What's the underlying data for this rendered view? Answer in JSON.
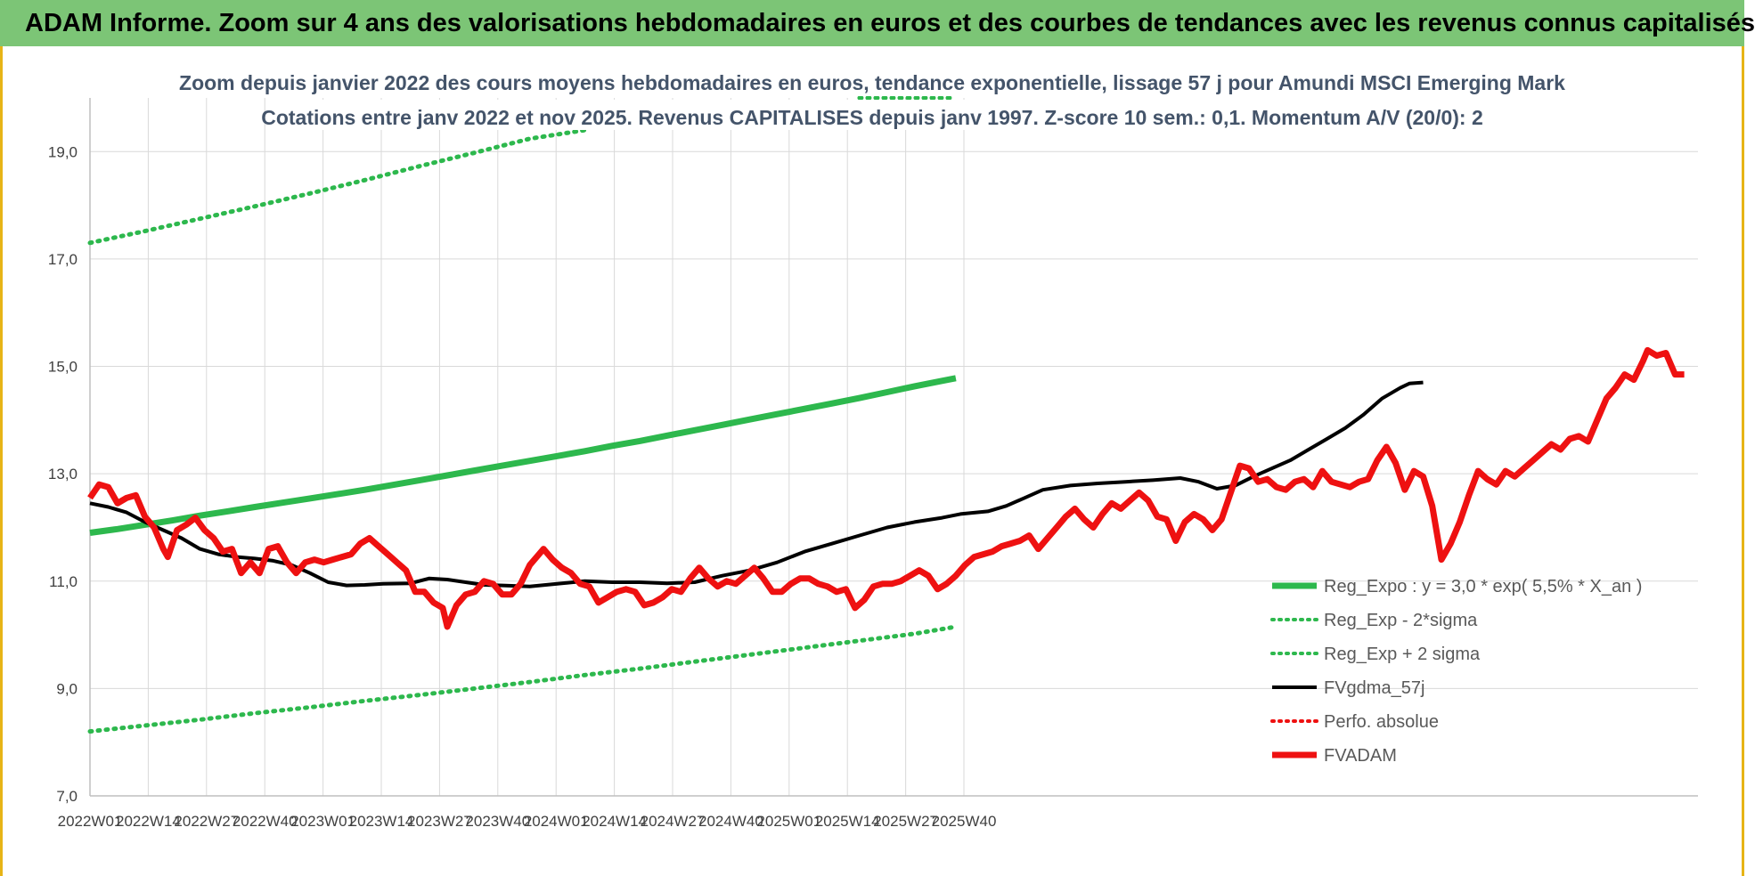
{
  "banner": {
    "text": "ADAM Informe. Zoom sur 4 ans des valorisations hebdomadaires en euros et des courbes de tendances avec les revenus connus capitalisés"
  },
  "colors": {
    "banner_bg": "#7cc576",
    "trend_green": "#2db84d",
    "fv_black": "#000000",
    "adam_red": "#ee1111",
    "frame_accent": "#e7b416"
  },
  "chart_data": {
    "type": "line",
    "title": "Zoom depuis janvier 2022 des cours moyens hebdomadaires en euros, tendance exponentielle, lissage 57 j pour Amundi MSCI Emerging Mark",
    "subtitle": "Cotations entre janv 2022 et nov 2025. Revenus CAPITALISES depuis janv 1997. Z-score 10 sem.: 0,1. Momentum A/V (20/0): 2",
    "xlabel": "",
    "ylabel": "",
    "x_ticks": [
      "2022W01",
      "2022W14",
      "2022W27",
      "2022W40",
      "2023W01",
      "2023W14",
      "2023W27",
      "2023W40",
      "2024W01",
      "2024W14",
      "2024W27",
      "2024W40",
      "2025W01",
      "2025W14",
      "2025W27",
      "2025W40"
    ],
    "y_ticks": [
      "7,0",
      "9,0",
      "11,0",
      "13,0",
      "15,0",
      "17,0",
      "19,0"
    ],
    "ylim": [
      7,
      20
    ],
    "grid": true,
    "legend_position": "bottom-right",
    "series": [
      {
        "name": "Reg_Expo : y = 3,0 * exp( 5,5% * X_an )",
        "style": "solid-thick",
        "color": "#2db84d",
        "values": [
          [
            0,
            11.9
          ],
          [
            6,
            11.97
          ],
          [
            12,
            12.05
          ],
          [
            18,
            12.13
          ],
          [
            24,
            12.22
          ],
          [
            30,
            12.3
          ],
          [
            36,
            12.38
          ],
          [
            42,
            12.46
          ],
          [
            48,
            12.54
          ],
          [
            54,
            12.62
          ],
          [
            60,
            12.7
          ],
          [
            66,
            12.79
          ],
          [
            72,
            12.88
          ],
          [
            78,
            12.97
          ],
          [
            84,
            13.06
          ],
          [
            90,
            13.15
          ],
          [
            96,
            13.24
          ],
          [
            102,
            13.33
          ],
          [
            108,
            13.42
          ],
          [
            114,
            13.52
          ],
          [
            120,
            13.61
          ],
          [
            126,
            13.71
          ],
          [
            132,
            13.81
          ],
          [
            138,
            13.91
          ],
          [
            144,
            14.01
          ],
          [
            150,
            14.11
          ],
          [
            156,
            14.21
          ],
          [
            162,
            14.31
          ],
          [
            168,
            14.41
          ],
          [
            174,
            14.52
          ],
          [
            180,
            14.63
          ],
          [
            186,
            14.73
          ],
          [
            189,
            14.78
          ]
        ]
      },
      {
        "name": "Reg_Exp - 2*sigma",
        "style": "dotted",
        "color": "#2db84d",
        "values": [
          [
            0,
            8.2
          ],
          [
            12,
            8.31
          ],
          [
            24,
            8.42
          ],
          [
            36,
            8.54
          ],
          [
            48,
            8.65
          ],
          [
            60,
            8.77
          ],
          [
            72,
            8.88
          ],
          [
            84,
            9.0
          ],
          [
            96,
            9.12
          ],
          [
            108,
            9.25
          ],
          [
            120,
            9.37
          ],
          [
            132,
            9.5
          ],
          [
            144,
            9.63
          ],
          [
            156,
            9.76
          ],
          [
            168,
            9.89
          ],
          [
            180,
            10.02
          ],
          [
            189,
            10.15
          ]
        ]
      },
      {
        "name": "Reg_Exp + 2 sigma",
        "style": "dotted",
        "color": "#2db84d",
        "values": [
          [
            0,
            17.3
          ],
          [
            12,
            17.52
          ],
          [
            24,
            17.75
          ],
          [
            36,
            17.98
          ],
          [
            48,
            18.22
          ],
          [
            60,
            18.47
          ],
          [
            72,
            18.73
          ],
          [
            84,
            18.98
          ],
          [
            96,
            19.24
          ],
          [
            108,
            19.4
          ]
        ],
        "overflow_segment": {
          "x": [
            168,
            189
          ],
          "y": 20.0
        }
      },
      {
        "name": "FVgdma_57j",
        "style": "solid",
        "color": "#000000",
        "values": [
          [
            0,
            12.45
          ],
          [
            4,
            12.38
          ],
          [
            8,
            12.28
          ],
          [
            12,
            12.1
          ],
          [
            16,
            11.95
          ],
          [
            20,
            11.8
          ],
          [
            24,
            11.6
          ],
          [
            28,
            11.5
          ],
          [
            32,
            11.45
          ],
          [
            36,
            11.42
          ],
          [
            40,
            11.38
          ],
          [
            44,
            11.3
          ],
          [
            48,
            11.15
          ],
          [
            52,
            10.98
          ],
          [
            56,
            10.92
          ],
          [
            60,
            10.93
          ],
          [
            64,
            10.95
          ],
          [
            70,
            10.96
          ],
          [
            74,
            11.05
          ],
          [
            78,
            11.03
          ],
          [
            82,
            10.98
          ],
          [
            86,
            10.93
          ],
          [
            90,
            10.92
          ],
          [
            96,
            10.9
          ],
          [
            102,
            10.95
          ],
          [
            108,
            11.0
          ],
          [
            114,
            10.98
          ],
          [
            120,
            10.98
          ],
          [
            126,
            10.96
          ],
          [
            132,
            10.98
          ],
          [
            138,
            11.1
          ],
          [
            144,
            11.2
          ],
          [
            150,
            11.35
          ],
          [
            156,
            11.55
          ],
          [
            162,
            11.7
          ],
          [
            168,
            11.85
          ],
          [
            174,
            12.0
          ],
          [
            180,
            12.1
          ],
          [
            186,
            12.18
          ],
          [
            190,
            12.25
          ],
          [
            196,
            12.3
          ],
          [
            200,
            12.4
          ],
          [
            204,
            12.55
          ],
          [
            208,
            12.7
          ],
          [
            214,
            12.78
          ],
          [
            220,
            12.82
          ],
          [
            226,
            12.85
          ],
          [
            232,
            12.88
          ],
          [
            238,
            12.92
          ],
          [
            242,
            12.85
          ],
          [
            246,
            12.72
          ],
          [
            250,
            12.78
          ],
          [
            254,
            12.95
          ],
          [
            258,
            13.1
          ],
          [
            262,
            13.25
          ],
          [
            266,
            13.45
          ],
          [
            270,
            13.65
          ],
          [
            274,
            13.85
          ],
          [
            278,
            14.1
          ],
          [
            282,
            14.4
          ],
          [
            286,
            14.6
          ],
          [
            288,
            14.68
          ],
          [
            291,
            14.7
          ]
        ]
      },
      {
        "name": "Perfo. absolue",
        "style": "dotted",
        "color": "#ee1111",
        "values": []
      },
      {
        "name": "FVADAM",
        "style": "solid-thick",
        "color": "#ee1111",
        "values": [
          [
            0,
            12.55
          ],
          [
            2,
            12.8
          ],
          [
            4,
            12.75
          ],
          [
            6,
            12.45
          ],
          [
            8,
            12.55
          ],
          [
            10,
            12.6
          ],
          [
            12,
            12.2
          ],
          [
            14,
            12.0
          ],
          [
            16,
            11.6
          ],
          [
            17,
            11.45
          ],
          [
            19,
            11.95
          ],
          [
            21,
            12.05
          ],
          [
            23,
            12.18
          ],
          [
            25,
            11.95
          ],
          [
            27,
            11.8
          ],
          [
            29,
            11.55
          ],
          [
            31,
            11.6
          ],
          [
            33,
            11.15
          ],
          [
            35,
            11.35
          ],
          [
            37,
            11.15
          ],
          [
            39,
            11.6
          ],
          [
            41,
            11.65
          ],
          [
            43,
            11.35
          ],
          [
            45,
            11.15
          ],
          [
            47,
            11.35
          ],
          [
            49,
            11.4
          ],
          [
            51,
            11.35
          ],
          [
            53,
            11.4
          ],
          [
            55,
            11.45
          ],
          [
            57,
            11.5
          ],
          [
            59,
            11.7
          ],
          [
            61,
            11.8
          ],
          [
            63,
            11.65
          ],
          [
            65,
            11.5
          ],
          [
            67,
            11.35
          ],
          [
            69,
            11.2
          ],
          [
            71,
            10.8
          ],
          [
            73,
            10.8
          ],
          [
            75,
            10.6
          ],
          [
            77,
            10.5
          ],
          [
            78,
            10.15
          ],
          [
            80,
            10.55
          ],
          [
            82,
            10.75
          ],
          [
            84,
            10.8
          ],
          [
            86,
            11.0
          ],
          [
            88,
            10.95
          ],
          [
            90,
            10.75
          ],
          [
            92,
            10.75
          ],
          [
            94,
            10.95
          ],
          [
            96,
            11.3
          ],
          [
            98,
            11.5
          ],
          [
            99,
            11.6
          ],
          [
            101,
            11.4
          ],
          [
            103,
            11.25
          ],
          [
            105,
            11.15
          ],
          [
            107,
            10.95
          ],
          [
            109,
            10.9
          ],
          [
            111,
            10.6
          ],
          [
            113,
            10.7
          ],
          [
            115,
            10.8
          ],
          [
            117,
            10.85
          ],
          [
            119,
            10.8
          ],
          [
            121,
            10.55
          ],
          [
            123,
            10.6
          ],
          [
            125,
            10.7
          ],
          [
            127,
            10.85
          ],
          [
            129,
            10.8
          ],
          [
            131,
            11.05
          ],
          [
            133,
            11.25
          ],
          [
            135,
            11.05
          ],
          [
            137,
            10.9
          ],
          [
            139,
            11.0
          ],
          [
            141,
            10.95
          ],
          [
            143,
            11.1
          ],
          [
            145,
            11.25
          ],
          [
            147,
            11.05
          ],
          [
            149,
            10.8
          ],
          [
            151,
            10.8
          ],
          [
            153,
            10.95
          ],
          [
            155,
            11.05
          ],
          [
            157,
            11.05
          ],
          [
            159,
            10.95
          ],
          [
            161,
            10.9
          ],
          [
            163,
            10.8
          ],
          [
            165,
            10.85
          ],
          [
            167,
            10.5
          ],
          [
            169,
            10.65
          ],
          [
            171,
            10.9
          ],
          [
            173,
            10.95
          ],
          [
            175,
            10.95
          ],
          [
            177,
            11.0
          ],
          [
            179,
            11.1
          ],
          [
            181,
            11.2
          ],
          [
            183,
            11.1
          ],
          [
            185,
            10.85
          ],
          [
            187,
            10.95
          ],
          [
            189,
            11.1
          ],
          [
            191,
            11.3
          ],
          [
            193,
            11.45
          ],
          [
            195,
            11.5
          ],
          [
            197,
            11.55
          ],
          [
            199,
            11.65
          ],
          [
            201,
            11.7
          ],
          [
            203,
            11.75
          ],
          [
            205,
            11.85
          ],
          [
            207,
            11.6
          ],
          [
            209,
            11.8
          ],
          [
            211,
            12.0
          ],
          [
            213,
            12.2
          ],
          [
            215,
            12.35
          ],
          [
            217,
            12.15
          ],
          [
            219,
            12.0
          ],
          [
            221,
            12.25
          ],
          [
            223,
            12.45
          ],
          [
            225,
            12.35
          ],
          [
            227,
            12.5
          ],
          [
            229,
            12.65
          ],
          [
            231,
            12.5
          ],
          [
            233,
            12.2
          ],
          [
            235,
            12.15
          ],
          [
            237,
            11.75
          ],
          [
            239,
            12.1
          ],
          [
            241,
            12.25
          ],
          [
            243,
            12.15
          ],
          [
            245,
            11.95
          ],
          [
            247,
            12.15
          ],
          [
            249,
            12.65
          ],
          [
            251,
            13.15
          ],
          [
            253,
            13.1
          ],
          [
            255,
            12.85
          ],
          [
            257,
            12.9
          ],
          [
            259,
            12.75
          ],
          [
            261,
            12.7
          ],
          [
            263,
            12.85
          ],
          [
            265,
            12.9
          ],
          [
            267,
            12.75
          ],
          [
            269,
            13.05
          ],
          [
            271,
            12.85
          ],
          [
            273,
            12.8
          ],
          [
            275,
            12.75
          ],
          [
            277,
            12.85
          ],
          [
            279,
            12.9
          ],
          [
            281,
            13.25
          ],
          [
            283,
            13.5
          ],
          [
            285,
            13.2
          ],
          [
            287,
            12.7
          ],
          [
            289,
            13.05
          ],
          [
            291,
            12.95
          ],
          [
            293,
            12.4
          ],
          [
            295,
            11.4
          ],
          [
            297,
            11.7
          ],
          [
            299,
            12.1
          ],
          [
            301,
            12.6
          ],
          [
            303,
            13.05
          ],
          [
            305,
            12.9
          ],
          [
            307,
            12.8
          ],
          [
            309,
            13.05
          ],
          [
            311,
            12.95
          ],
          [
            313,
            13.1
          ],
          [
            315,
            13.25
          ],
          [
            317,
            13.4
          ],
          [
            319,
            13.55
          ],
          [
            321,
            13.45
          ],
          [
            323,
            13.65
          ],
          [
            325,
            13.7
          ],
          [
            327,
            13.6
          ],
          [
            329,
            14.0
          ],
          [
            331,
            14.4
          ],
          [
            333,
            14.6
          ],
          [
            335,
            14.85
          ],
          [
            337,
            14.75
          ],
          [
            339,
            15.1
          ],
          [
            340,
            15.3
          ],
          [
            342,
            15.2
          ],
          [
            344,
            15.25
          ],
          [
            346,
            14.85
          ],
          [
            348,
            14.85
          ]
        ]
      }
    ]
  }
}
